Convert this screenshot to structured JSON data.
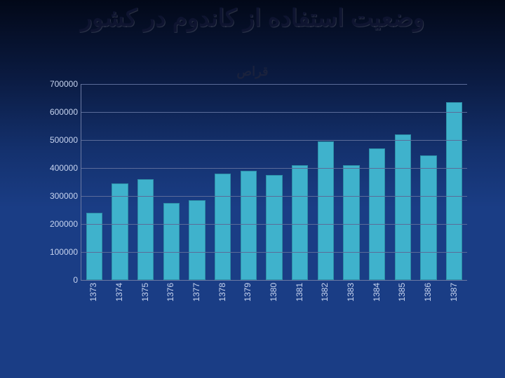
{
  "title": "وضعیت استفاده از کاندوم در کشور",
  "subtitle": "قراص",
  "chart": {
    "type": "bar",
    "bar_color": "#3fb2cc",
    "bar_border_color": "#2d8fa7",
    "bar_width_ratio": 0.58,
    "background_gradient": [
      "#020818",
      "#0a1a40",
      "#14316e",
      "#1a3d85"
    ],
    "grid_color": "#5b6c99",
    "axis_color": "#6b7aa3",
    "label_color": "#c7d4ef",
    "title_color": "#0e1430",
    "title_fontsize": 34,
    "subtitle_fontsize": 18,
    "label_fontsize": 12,
    "ylim": [
      0,
      700000
    ],
    "ytick_step": 100000,
    "yticks": [
      0,
      100000,
      200000,
      300000,
      400000,
      500000,
      600000,
      700000
    ],
    "categories": [
      "1373",
      "1374",
      "1375",
      "1376",
      "1377",
      "1378",
      "1379",
      "1380",
      "1381",
      "1382",
      "1383",
      "1384",
      "1385",
      "1386",
      "1387"
    ],
    "values": [
      235000,
      340000,
      355000,
      270000,
      280000,
      375000,
      385000,
      370000,
      405000,
      490000,
      405000,
      465000,
      515000,
      440000,
      630000
    ]
  }
}
